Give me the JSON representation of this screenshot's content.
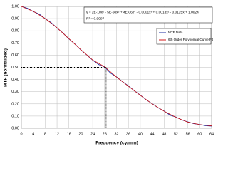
{
  "chart_data": {
    "type": "line",
    "x_label": "Frequency (cy/mm)",
    "y_label": "MTF (normalized)",
    "equation": "y = 2E-10x⁶ - 5E-08x⁵ + 4E-06x⁴ - 0.0001x³ + 0.0013x² - 0.0125x + 1.0024",
    "r_squared": "R² = 0.9997",
    "series": [
      {
        "name": "MTF Data",
        "color": "#1f2fa0",
        "x": [
          0,
          2,
          4,
          6,
          8,
          10,
          12,
          14,
          16,
          18,
          20,
          22,
          24,
          26,
          28,
          30,
          32,
          34,
          36,
          38,
          40,
          42,
          44,
          46,
          48,
          50,
          52,
          54,
          56,
          58,
          60,
          62,
          64
        ],
        "values": [
          1.0,
          0.985,
          0.958,
          0.937,
          0.9,
          0.867,
          0.823,
          0.782,
          0.733,
          0.692,
          0.643,
          0.602,
          0.558,
          0.523,
          0.503,
          0.452,
          0.422,
          0.383,
          0.347,
          0.308,
          0.272,
          0.233,
          0.202,
          0.168,
          0.142,
          0.108,
          0.092,
          0.068,
          0.052,
          0.038,
          0.031,
          0.021,
          0.018
        ]
      },
      {
        "name": "6th Order Polynomial Curve Fit",
        "color": "#d01818",
        "x": [
          0,
          4,
          8,
          12,
          16,
          20,
          24,
          28,
          32,
          36,
          40,
          44,
          48,
          52,
          56,
          60,
          64
        ],
        "values": [
          1.0,
          0.96,
          0.9,
          0.825,
          0.735,
          0.645,
          0.56,
          0.505,
          0.42,
          0.345,
          0.27,
          0.2,
          0.14,
          0.09,
          0.05,
          0.03,
          0.02
        ]
      }
    ],
    "reference_point": {
      "x": 28.5,
      "y": 0.5
    },
    "xlim": [
      0,
      64
    ],
    "xticks": [
      0,
      4,
      8,
      12,
      16,
      20,
      24,
      28,
      32,
      36,
      40,
      44,
      48,
      52,
      56,
      60,
      64
    ],
    "ylim": [
      0,
      1
    ],
    "yticks": [
      {
        "value": 0,
        "label": "0.00"
      },
      {
        "value": 0.1,
        "label": "0.10"
      },
      {
        "value": 0.2,
        "label": "0.20"
      },
      {
        "value": 0.3,
        "label": "0.30"
      },
      {
        "value": 0.4,
        "label": "0.40"
      },
      {
        "value": 0.5,
        "label": "0.50"
      },
      {
        "value": 0.6,
        "label": "0.60"
      },
      {
        "value": 0.7,
        "label": "0.70"
      },
      {
        "value": 0.8,
        "label": "0.80"
      },
      {
        "value": 0.9,
        "label": "0.90"
      },
      {
        "value": 1,
        "label": "1.00"
      }
    ],
    "grid": true
  }
}
